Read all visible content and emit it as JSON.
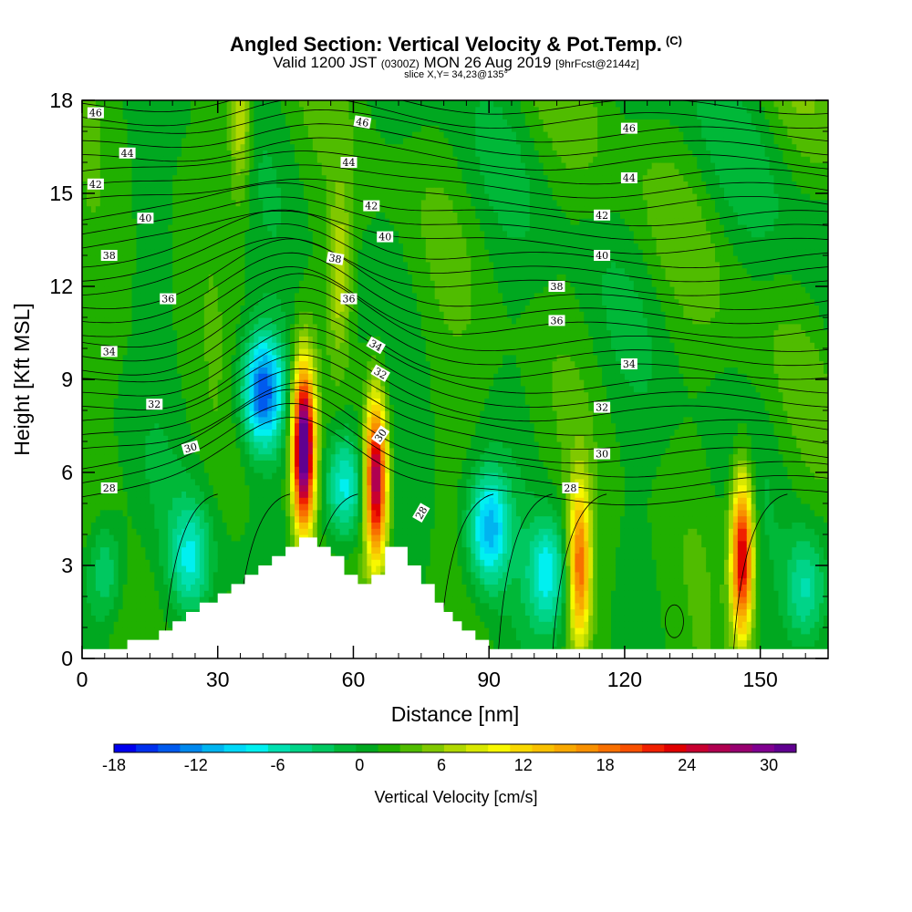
{
  "header": {
    "title": "Angled Section: Vertical Velocity & Pot.Temp.",
    "copyright": "(C)",
    "valid_prefix": "Valid 1200 JST",
    "valid_utc": "(0300Z)",
    "valid_date": "MON 26 Aug 2019",
    "forecast": "[9hrFcst@2144z]",
    "slice": "slice X,Y= 34,23@135°"
  },
  "chart_data": {
    "type": "heatmap",
    "xlabel": "Distance [nm]",
    "ylabel": "Height [Kft MSL]",
    "xlim": [
      0,
      165
    ],
    "ylim": [
      0,
      18
    ],
    "xticks": [
      0,
      30,
      60,
      90,
      120,
      150
    ],
    "yticks": [
      0,
      3,
      6,
      9,
      12,
      15,
      18
    ],
    "colorbar": {
      "label": "Vertical Velocity [cm/s]",
      "ticks": [
        "-18",
        "-12",
        "-6",
        "0",
        "6",
        "12",
        "18",
        "24",
        "30"
      ],
      "tick_values": [
        -18,
        -12,
        -6,
        0,
        6,
        12,
        18,
        24,
        30
      ],
      "range": [
        -18,
        32
      ],
      "colors": [
        "#0000ee",
        "#0030ee",
        "#005aee",
        "#0088ee",
        "#00b4f0",
        "#00d8f8",
        "#00f0f0",
        "#00e0b0",
        "#00d488",
        "#00c860",
        "#00b838",
        "#00a820",
        "#20b000",
        "#50bc00",
        "#80c800",
        "#b0d800",
        "#d8e800",
        "#f8f800",
        "#f8d800",
        "#f8c000",
        "#f8a800",
        "#f89000",
        "#f87000",
        "#f85000",
        "#f02000",
        "#e00000",
        "#c80030",
        "#b00050",
        "#980070",
        "#800090",
        "#600090"
      ]
    },
    "updrafts": [
      {
        "x": 49,
        "z": 6.8,
        "max": 33
      },
      {
        "x": 65,
        "z": 5.8,
        "max": 27
      },
      {
        "x": 110,
        "z": 3.0,
        "max": 17
      },
      {
        "x": 146,
        "z": 3.3,
        "max": 24
      },
      {
        "x": 57,
        "z": 12.5,
        "max": 6
      },
      {
        "x": 35,
        "z": 17.5,
        "max": 7
      }
    ],
    "downdrafts": [
      {
        "x": 40,
        "z": 8.6,
        "min": -16
      },
      {
        "x": 58,
        "z": 5.5,
        "min": -10
      },
      {
        "x": 90,
        "z": 4.2,
        "min": -12
      },
      {
        "x": 103,
        "z": 2.8,
        "min": -9
      },
      {
        "x": 24,
        "z": 3.2,
        "min": -8
      },
      {
        "x": 160,
        "z": 2.2,
        "min": -7
      },
      {
        "x": 5,
        "z": 2.8,
        "min": -7
      }
    ],
    "theta_levels": [
      28,
      30,
      32,
      34,
      36,
      38,
      40,
      42,
      44,
      46
    ],
    "theta_labels": [
      {
        "text": "46",
        "x": 3,
        "z": 17.6,
        "angle": 0
      },
      {
        "text": "44",
        "x": 10,
        "z": 16.3,
        "angle": 0
      },
      {
        "text": "42",
        "x": 3,
        "z": 15.3,
        "angle": 0
      },
      {
        "text": "40",
        "x": 14,
        "z": 14.2,
        "angle": 0
      },
      {
        "text": "38",
        "x": 6,
        "z": 13.0,
        "angle": 0
      },
      {
        "text": "36",
        "x": 19,
        "z": 11.6,
        "angle": 0
      },
      {
        "text": "34",
        "x": 6,
        "z": 9.9,
        "angle": 0
      },
      {
        "text": "32",
        "x": 16,
        "z": 8.2,
        "angle": 0
      },
      {
        "text": "30",
        "x": 24,
        "z": 6.8,
        "angle": -15
      },
      {
        "text": "28",
        "x": 6,
        "z": 5.5,
        "angle": 0
      },
      {
        "text": "46",
        "x": 62,
        "z": 17.3,
        "angle": 10
      },
      {
        "text": "44",
        "x": 59,
        "z": 16.0,
        "angle": 0
      },
      {
        "text": "42",
        "x": 64,
        "z": 14.6,
        "angle": 0
      },
      {
        "text": "40",
        "x": 67,
        "z": 13.6,
        "angle": 0
      },
      {
        "text": "38",
        "x": 56,
        "z": 12.9,
        "angle": 10
      },
      {
        "text": "36",
        "x": 59,
        "z": 11.6,
        "angle": 0
      },
      {
        "text": "34",
        "x": 65,
        "z": 10.1,
        "angle": 30
      },
      {
        "text": "32",
        "x": 66,
        "z": 9.2,
        "angle": 30
      },
      {
        "text": "30",
        "x": 66,
        "z": 7.2,
        "angle": -55
      },
      {
        "text": "28",
        "x": 75,
        "z": 4.7,
        "angle": -60
      },
      {
        "text": "46",
        "x": 121,
        "z": 17.1,
        "angle": 0
      },
      {
        "text": "44",
        "x": 121,
        "z": 15.5,
        "angle": 0
      },
      {
        "text": "42",
        "x": 115,
        "z": 14.3,
        "angle": 0
      },
      {
        "text": "40",
        "x": 115,
        "z": 13.0,
        "angle": 0
      },
      {
        "text": "38",
        "x": 105,
        "z": 12.0,
        "angle": 0
      },
      {
        "text": "36",
        "x": 105,
        "z": 10.9,
        "angle": 0
      },
      {
        "text": "34",
        "x": 121,
        "z": 9.5,
        "angle": 0
      },
      {
        "text": "32",
        "x": 115,
        "z": 8.1,
        "angle": 0
      },
      {
        "text": "30",
        "x": 115,
        "z": 6.6,
        "angle": 0
      },
      {
        "text": "28",
        "x": 108,
        "z": 5.5,
        "angle": 0
      }
    ],
    "terrain": [
      [
        0,
        0.3
      ],
      [
        10,
        0.3
      ],
      [
        10,
        0.6
      ],
      [
        17,
        0.6
      ],
      [
        17,
        0.9
      ],
      [
        20,
        0.9
      ],
      [
        20,
        1.2
      ],
      [
        23,
        1.2
      ],
      [
        23,
        1.5
      ],
      [
        26,
        1.5
      ],
      [
        26,
        1.8
      ],
      [
        30,
        1.8
      ],
      [
        30,
        2.1
      ],
      [
        33,
        2.1
      ],
      [
        33,
        2.4
      ],
      [
        36,
        2.4
      ],
      [
        36,
        2.7
      ],
      [
        39,
        2.7
      ],
      [
        39,
        3.0
      ],
      [
        42,
        3.0
      ],
      [
        42,
        3.3
      ],
      [
        45,
        3.3
      ],
      [
        45,
        3.6
      ],
      [
        48,
        3.6
      ],
      [
        48,
        3.9
      ],
      [
        52,
        3.9
      ],
      [
        52,
        3.6
      ],
      [
        55,
        3.6
      ],
      [
        55,
        3.3
      ],
      [
        58,
        3.3
      ],
      [
        58,
        2.7
      ],
      [
        61,
        2.7
      ],
      [
        61,
        2.4
      ],
      [
        64,
        2.4
      ],
      [
        64,
        2.7
      ],
      [
        67,
        2.7
      ],
      [
        67,
        3.6
      ],
      [
        72,
        3.6
      ],
      [
        72,
        3.0
      ],
      [
        75,
        3.0
      ],
      [
        75,
        2.4
      ],
      [
        78,
        2.4
      ],
      [
        78,
        1.8
      ],
      [
        80,
        1.8
      ],
      [
        80,
        1.5
      ],
      [
        82,
        1.5
      ],
      [
        82,
        1.2
      ],
      [
        84,
        1.2
      ],
      [
        84,
        0.9
      ],
      [
        87,
        0.9
      ],
      [
        87,
        0.6
      ],
      [
        90,
        0.6
      ],
      [
        90,
        0.3
      ],
      [
        165,
        0.3
      ]
    ]
  }
}
